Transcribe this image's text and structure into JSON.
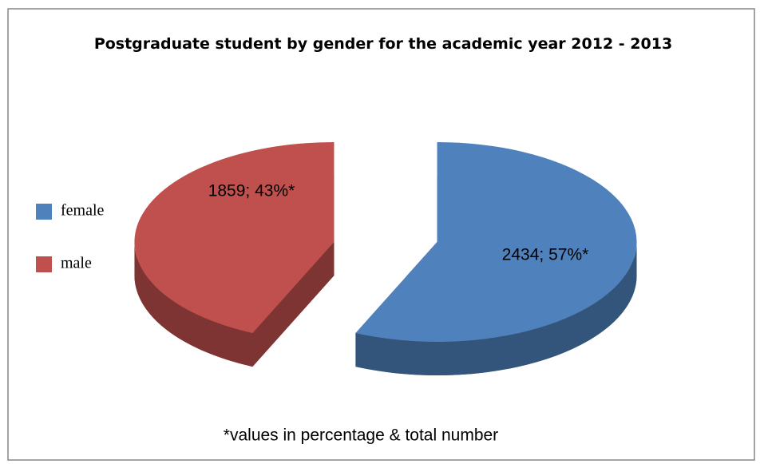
{
  "chart_data": {
    "type": "pie",
    "title": "Postgraduate student by gender for the academic year 2012 - 2013",
    "categories": [
      "female",
      "male"
    ],
    "values": [
      2434,
      1859
    ],
    "value_labels": [
      "2434; 57%*",
      "1859; 43%*"
    ],
    "colors": [
      "#4f81bd",
      "#c0504d"
    ],
    "legend": "left",
    "note": "*values in percentage & total number"
  }
}
